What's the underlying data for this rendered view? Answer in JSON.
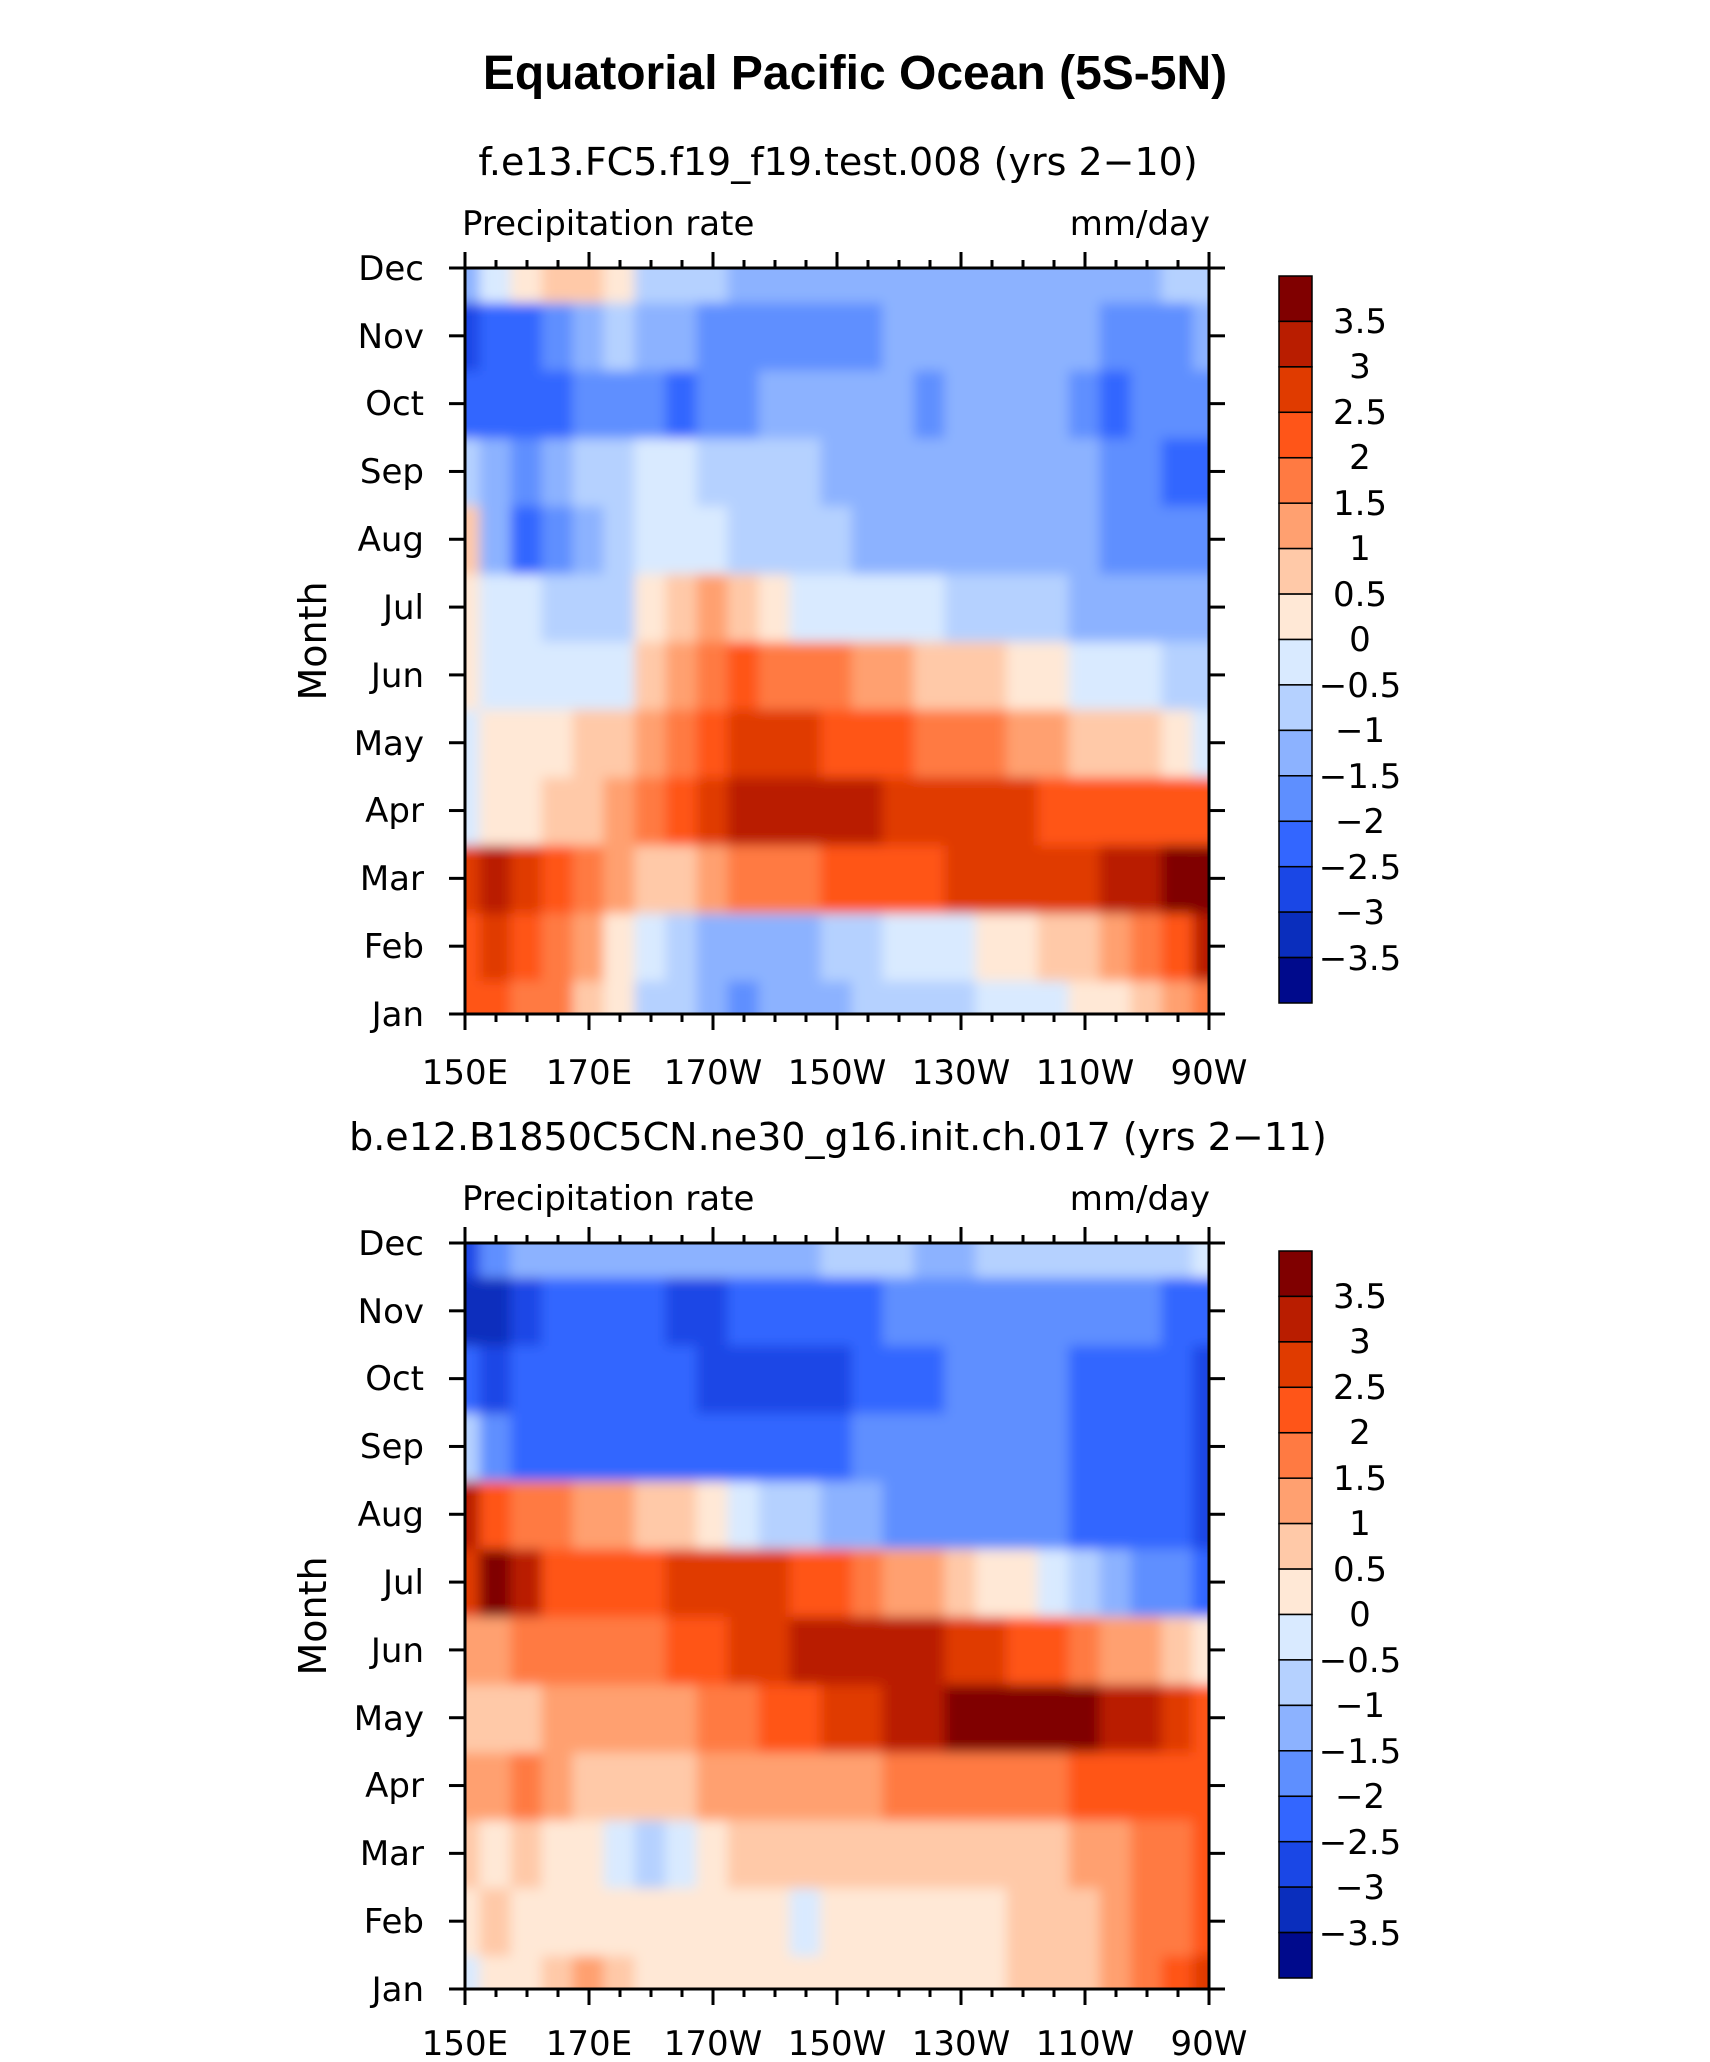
{
  "title": "Equatorial Pacific Ocean (5S-5N)",
  "colorbar": {
    "labels": [
      "3.5",
      "3",
      "2.5",
      "2",
      "1.5",
      "1",
      "0.5",
      "0",
      "−0.5",
      "−1",
      "−1.5",
      "−2",
      "−2.5",
      "−3",
      "−3.5"
    ],
    "colors": [
      "#800000",
      "#b91d00",
      "#e03b00",
      "#ff5518",
      "#ff7a42",
      "#ffa070",
      "#ffc9a8",
      "#ffe8d6",
      "#d9eaff",
      "#b5d1ff",
      "#8cb2ff",
      "#5e8fff",
      "#3366ff",
      "#1a47e6",
      "#0a2ebd",
      "#000a8c"
    ]
  },
  "chart_data": [
    {
      "type": "heatmap",
      "title": "f.e13.FC5.f19_f19.test.008 (yrs 2−10)",
      "left_label": "Precipitation rate",
      "right_label": "mm/day",
      "xlabel": "",
      "ylabel": "Month",
      "x_tick_labels": [
        "150E",
        "170E",
        "170W",
        "150W",
        "130W",
        "110W",
        "90W"
      ],
      "x_tick_values": [
        150,
        170,
        190,
        210,
        230,
        250,
        270
      ],
      "y_tick_labels": [
        "Jan",
        "Feb",
        "Mar",
        "Apr",
        "May",
        "Jun",
        "Jul",
        "Aug",
        "Sep",
        "Oct",
        "Nov",
        "Dec"
      ],
      "x": [
        150,
        155,
        160,
        165,
        170,
        175,
        180,
        185,
        190,
        195,
        200,
        205,
        210,
        215,
        220,
        225,
        230,
        235,
        240,
        245,
        250,
        255,
        260,
        265,
        270
      ],
      "contour_levels": [
        -3.5,
        -3,
        -2.5,
        -2,
        -1.5,
        -1,
        -0.5,
        0,
        0.5,
        1,
        1.5,
        2,
        2.5,
        3,
        3.5
      ],
      "values": [
        [
          2.2,
          2.0,
          1.9,
          1.5,
          0.6,
          0.0,
          -0.6,
          -1.0,
          -1.3,
          -1.6,
          -1.5,
          -1.3,
          -1.1,
          -1.0,
          -0.8,
          -0.7,
          -0.6,
          -0.5,
          -0.4,
          -0.2,
          0.0,
          0.3,
          0.8,
          1.2,
          1.6
        ],
        [
          2.4,
          2.5,
          2.3,
          1.8,
          1.0,
          0.2,
          -0.3,
          -0.8,
          -1.3,
          -1.5,
          -1.3,
          -1.1,
          -0.9,
          -0.7,
          -0.5,
          -0.3,
          -0.2,
          0.0,
          0.2,
          0.5,
          0.9,
          1.3,
          1.8,
          2.4,
          3.0
        ],
        [
          2.7,
          3.1,
          2.8,
          2.3,
          1.6,
          1.0,
          0.7,
          0.8,
          1.2,
          1.5,
          1.6,
          1.8,
          2.0,
          2.2,
          2.3,
          2.4,
          2.5,
          2.6,
          2.7,
          2.8,
          2.9,
          3.1,
          3.4,
          3.7,
          3.9
        ],
        [
          -0.3,
          0.2,
          0.4,
          0.6,
          0.8,
          1.2,
          1.6,
          2.1,
          2.6,
          3.0,
          3.2,
          3.3,
          3.1,
          3.0,
          2.9,
          2.8,
          2.7,
          2.6,
          2.5,
          2.4,
          2.3,
          2.2,
          2.1,
          2.0,
          2.0
        ],
        [
          -0.5,
          0.1,
          0.2,
          0.3,
          0.5,
          0.8,
          1.2,
          1.8,
          2.3,
          2.6,
          2.6,
          2.5,
          2.4,
          2.2,
          2.0,
          1.9,
          1.7,
          1.5,
          1.3,
          1.1,
          0.9,
          0.7,
          0.5,
          0.2,
          -0.3
        ],
        [
          0.2,
          -0.1,
          -0.3,
          -0.4,
          -0.5,
          -0.2,
          0.7,
          1.3,
          1.8,
          2.0,
          1.9,
          1.8,
          1.6,
          1.4,
          1.1,
          0.9,
          0.7,
          0.5,
          0.3,
          0.1,
          -0.1,
          -0.3,
          -0.4,
          -0.6,
          -0.8
        ],
        [
          0.3,
          -0.2,
          -0.5,
          -0.7,
          -0.8,
          -0.6,
          0.3,
          0.9,
          1.0,
          0.6,
          0.2,
          -0.1,
          -0.2,
          -0.3,
          -0.4,
          -0.5,
          -0.6,
          -0.7,
          -0.9,
          -1.0,
          -1.1,
          -1.2,
          -1.3,
          -1.3,
          -1.5
        ],
        [
          0.5,
          -1.1,
          -2.2,
          -1.8,
          -1.3,
          -1.0,
          -0.5,
          -0.1,
          -0.3,
          -0.6,
          -0.8,
          -0.9,
          -1.0,
          -1.1,
          -1.2,
          -1.3,
          -1.3,
          -1.4,
          -1.3,
          -1.3,
          -1.4,
          -1.6,
          -1.7,
          -1.8,
          -1.9
        ],
        [
          -1.0,
          -1.3,
          -1.6,
          -1.3,
          -1.0,
          -0.6,
          -0.4,
          -0.5,
          -0.7,
          -0.9,
          -1.0,
          -1.0,
          -1.1,
          -1.2,
          -1.3,
          -1.3,
          -1.4,
          -1.3,
          -1.3,
          -1.4,
          -1.5,
          -1.8,
          -2.0,
          -2.1,
          -2.1
        ],
        [
          -2.1,
          -2.1,
          -2.3,
          -2.2,
          -1.8,
          -1.6,
          -1.7,
          -2.3,
          -1.9,
          -1.6,
          -1.5,
          -1.4,
          -1.4,
          -1.4,
          -1.5,
          -1.6,
          -1.5,
          -1.5,
          -1.5,
          -1.5,
          -1.6,
          -2.1,
          -2.0,
          -1.9,
          -1.8
        ],
        [
          -2.6,
          -2.3,
          -2.2,
          -1.9,
          -1.4,
          -1.0,
          -1.1,
          -1.4,
          -1.6,
          -1.6,
          -1.6,
          -1.7,
          -1.6,
          -1.6,
          -1.5,
          -1.4,
          -1.3,
          -1.3,
          -1.3,
          -1.3,
          -1.4,
          -1.6,
          -1.7,
          -1.6,
          -1.5
        ],
        [
          -1.2,
          -0.4,
          0.1,
          0.6,
          0.6,
          0.2,
          -0.6,
          -0.8,
          -1.0,
          -1.1,
          -1.3,
          -1.3,
          -1.3,
          -1.3,
          -1.3,
          -1.3,
          -1.3,
          -1.3,
          -1.2,
          -1.1,
          -1.1,
          -1.1,
          -1.2,
          -1.0,
          -0.9
        ]
      ]
    },
    {
      "type": "heatmap",
      "title": "b.e12.B1850C5CN.ne30_g16.init.ch.017 (yrs 2−11)",
      "left_label": "Precipitation rate",
      "right_label": "mm/day",
      "xlabel": "",
      "ylabel": "Month",
      "x_tick_labels": [
        "150E",
        "170E",
        "170W",
        "150W",
        "130W",
        "110W",
        "90W"
      ],
      "x_tick_values": [
        150,
        170,
        190,
        210,
        230,
        250,
        270
      ],
      "y_tick_labels": [
        "Jan",
        "Feb",
        "Mar",
        "Apr",
        "May",
        "Jun",
        "Jul",
        "Aug",
        "Sep",
        "Oct",
        "Nov",
        "Dec"
      ],
      "x": [
        150,
        155,
        160,
        165,
        170,
        175,
        180,
        185,
        190,
        195,
        200,
        205,
        210,
        215,
        220,
        225,
        230,
        235,
        240,
        245,
        250,
        255,
        260,
        265,
        270
      ],
      "contour_levels": [
        -3.5,
        -3,
        -2.5,
        -2,
        -1.5,
        -1,
        -0.5,
        0,
        0.5,
        1,
        1.5,
        2,
        2.5,
        3,
        3.5
      ],
      "values": [
        [
          -0.3,
          0.2,
          0.3,
          0.6,
          1.2,
          0.8,
          0.4,
          0.2,
          0.1,
          0.1,
          0.0,
          0.1,
          0.2,
          0.2,
          0.2,
          0.3,
          0.3,
          0.4,
          0.5,
          0.7,
          0.9,
          1.2,
          1.5,
          2.0,
          2.6
        ],
        [
          0.3,
          0.6,
          0.4,
          0.3,
          0.4,
          0.3,
          0.2,
          0.3,
          0.3,
          0.2,
          0.1,
          -0.1,
          0.1,
          0.2,
          0.3,
          0.3,
          0.3,
          0.4,
          0.5,
          0.7,
          0.9,
          1.2,
          1.5,
          1.8,
          2.0
        ],
        [
          0.6,
          0.4,
          0.6,
          0.4,
          0.1,
          -0.5,
          -0.9,
          -0.2,
          0.4,
          0.7,
          0.6,
          0.5,
          0.5,
          0.5,
          0.5,
          0.5,
          0.6,
          0.6,
          0.7,
          0.8,
          1.0,
          1.2,
          1.5,
          1.9,
          2.2
        ],
        [
          1.2,
          1.0,
          1.6,
          1.2,
          0.8,
          0.7,
          0.8,
          0.9,
          1.0,
          1.1,
          1.2,
          1.3,
          1.4,
          1.4,
          1.5,
          1.5,
          1.6,
          1.7,
          1.8,
          1.9,
          2.0,
          2.0,
          2.1,
          2.1,
          2.2
        ],
        [
          0.8,
          0.7,
          0.5,
          1.2,
          1.0,
          1.0,
          1.1,
          1.4,
          1.6,
          1.8,
          2.0,
          2.3,
          2.6,
          2.8,
          3.0,
          3.2,
          3.6,
          3.8,
          3.9,
          3.7,
          3.5,
          3.3,
          3.4,
          2.8,
          2.0
        ],
        [
          1.2,
          1.4,
          1.6,
          1.8,
          1.6,
          1.6,
          1.7,
          2.0,
          2.3,
          2.6,
          2.7,
          3.0,
          3.1,
          3.2,
          3.1,
          3.0,
          2.9,
          2.7,
          2.4,
          2.0,
          1.6,
          1.3,
          1.0,
          0.6,
          0.3
        ],
        [
          2.8,
          3.8,
          3.0,
          2.4,
          2.2,
          2.1,
          2.3,
          2.5,
          2.8,
          2.9,
          2.7,
          2.4,
          2.1,
          1.8,
          1.4,
          1.0,
          0.6,
          0.3,
          0.0,
          -0.4,
          -0.8,
          -1.2,
          -1.6,
          -2.0,
          -2.3
        ],
        [
          3.0,
          2.2,
          1.9,
          1.7,
          1.4,
          1.1,
          0.9,
          0.6,
          0.2,
          -0.2,
          -0.6,
          -1.0,
          -1.3,
          -1.5,
          -1.7,
          -1.8,
          -1.9,
          -1.9,
          -2.0,
          -2.0,
          -2.1,
          -2.2,
          -2.4,
          -2.5,
          -2.6
        ],
        [
          -1.0,
          -1.8,
          -2.2,
          -2.2,
          -2.1,
          -2.1,
          -2.1,
          -2.2,
          -2.2,
          -2.3,
          -2.2,
          -2.1,
          -2.1,
          -2.0,
          -2.0,
          -1.9,
          -1.9,
          -1.9,
          -1.9,
          -2.0,
          -2.1,
          -2.2,
          -2.4,
          -2.5,
          -2.6
        ],
        [
          -2.5,
          -2.8,
          -2.5,
          -2.3,
          -2.3,
          -2.3,
          -2.4,
          -2.5,
          -2.8,
          -3.0,
          -2.9,
          -2.7,
          -2.6,
          -2.4,
          -2.2,
          -2.1,
          -2.0,
          -2.0,
          -2.0,
          -2.0,
          -2.1,
          -2.2,
          -2.3,
          -2.4,
          -2.6
        ],
        [
          -3.1,
          -3.5,
          -3.0,
          -2.5,
          -2.4,
          -2.3,
          -2.5,
          -2.6,
          -2.6,
          -2.5,
          -2.4,
          -2.3,
          -2.2,
          -2.1,
          -2.0,
          -1.9,
          -1.8,
          -1.8,
          -1.8,
          -1.8,
          -1.8,
          -1.9,
          -2.0,
          -2.1,
          -2.1
        ],
        [
          -2.8,
          -2.0,
          -1.5,
          -1.3,
          -1.2,
          -1.1,
          -1.1,
          -1.1,
          -1.2,
          -1.2,
          -1.1,
          -1.1,
          -1.0,
          -1.0,
          -1.0,
          -1.1,
          -1.1,
          -1.0,
          -0.9,
          -0.8,
          -0.8,
          -0.7,
          -0.7,
          -0.6,
          -0.5
        ]
      ]
    }
  ]
}
